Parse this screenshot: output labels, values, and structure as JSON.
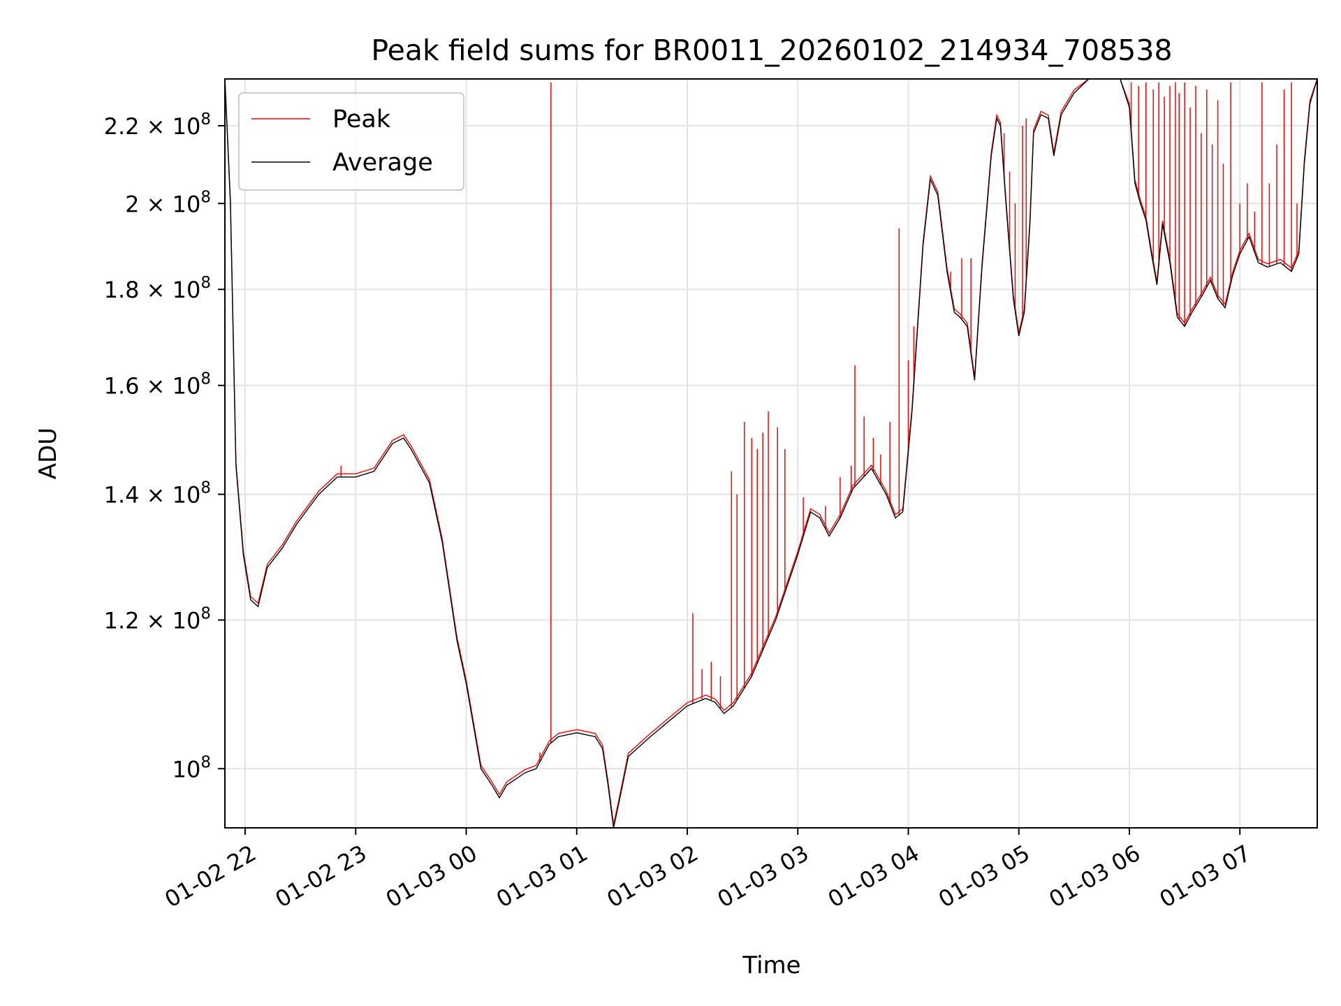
{
  "chart_data": {
    "type": "line",
    "title": "Peak field sums for BR0011_20260102_214934_708538",
    "xlabel": "Time",
    "ylabel": "ADU",
    "yscale": "log",
    "ylim": [
      93000000,
      233000000
    ],
    "xlim": [
      "2026-01-02 21:49",
      "2026-01-03 07:42"
    ],
    "grid": true,
    "legend_position": "top-left",
    "x_ticks": [
      {
        "time": "2026-01-02 22:00",
        "label": "01-02 22"
      },
      {
        "time": "2026-01-02 23:00",
        "label": "01-02 23"
      },
      {
        "time": "2026-01-03 00:00",
        "label": "01-03 00"
      },
      {
        "time": "2026-01-03 01:00",
        "label": "01-03 01"
      },
      {
        "time": "2026-01-03 02:00",
        "label": "01-03 02"
      },
      {
        "time": "2026-01-03 03:00",
        "label": "01-03 03"
      },
      {
        "time": "2026-01-03 04:00",
        "label": "01-03 04"
      },
      {
        "time": "2026-01-03 05:00",
        "label": "01-03 05"
      },
      {
        "time": "2026-01-03 06:00",
        "label": "01-03 06"
      },
      {
        "time": "2026-01-03 07:00",
        "label": "01-03 07"
      }
    ],
    "y_ticks": [
      {
        "value": 100000000,
        "mantissa": "",
        "exponent": "8"
      },
      {
        "value": 120000000,
        "mantissa": "1.2",
        "exponent": "8"
      },
      {
        "value": 140000000,
        "mantissa": "1.4",
        "exponent": "8"
      },
      {
        "value": 160000000,
        "mantissa": "1.6",
        "exponent": "8"
      },
      {
        "value": 180000000,
        "mantissa": "1.8",
        "exponent": "8"
      },
      {
        "value": 200000000,
        "mantissa": "2",
        "exponent": "8"
      },
      {
        "value": 220000000,
        "mantissa": "2.2",
        "exponent": "8"
      }
    ],
    "series": [
      {
        "name": "Average",
        "color": "#000000",
        "points": [
          [
            "2026-01-02 21:49",
            233000000
          ],
          [
            "2026-01-02 21:52",
            200000000
          ],
          [
            "2026-01-02 21:55",
            145000000
          ],
          [
            "2026-01-02 21:59",
            130000000
          ],
          [
            "2026-01-02 22:03",
            123000000
          ],
          [
            "2026-01-02 22:07",
            122000000
          ],
          [
            "2026-01-02 22:12",
            128000000
          ],
          [
            "2026-01-02 22:20",
            131000000
          ],
          [
            "2026-01-02 22:28",
            135000000
          ],
          [
            "2026-01-02 22:40",
            140000000
          ],
          [
            "2026-01-02 22:50",
            143000000
          ],
          [
            "2026-01-02 23:00",
            143000000
          ],
          [
            "2026-01-02 23:10",
            144000000
          ],
          [
            "2026-01-02 23:20",
            149000000
          ],
          [
            "2026-01-02 23:26",
            150000000
          ],
          [
            "2026-01-02 23:30",
            148000000
          ],
          [
            "2026-01-02 23:40",
            142000000
          ],
          [
            "2026-01-02 23:47",
            132000000
          ],
          [
            "2026-01-02 23:55",
            117000000
          ],
          [
            "2026-01-03 00:00",
            111000000
          ],
          [
            "2026-01-03 00:08",
            100000000
          ],
          [
            "2026-01-03 00:14",
            98000000
          ],
          [
            "2026-01-03 00:18",
            96500000
          ],
          [
            "2026-01-03 00:22",
            98000000
          ],
          [
            "2026-01-03 00:32",
            99500000
          ],
          [
            "2026-01-03 00:38",
            100000000
          ],
          [
            "2026-01-03 00:45",
            103000000
          ],
          [
            "2026-01-03 00:50",
            104000000
          ],
          [
            "2026-01-03 01:00",
            104500000
          ],
          [
            "2026-01-03 01:10",
            104000000
          ],
          [
            "2026-01-03 01:14",
            102500000
          ],
          [
            "2026-01-03 01:17",
            98000000
          ],
          [
            "2026-01-03 01:20",
            93000000
          ],
          [
            "2026-01-03 01:23",
            96000000
          ],
          [
            "2026-01-03 01:28",
            101500000
          ],
          [
            "2026-01-03 01:40",
            104000000
          ],
          [
            "2026-01-03 01:50",
            106000000
          ],
          [
            "2026-01-03 02:00",
            108000000
          ],
          [
            "2026-01-03 02:10",
            109000000
          ],
          [
            "2026-01-03 02:15",
            108500000
          ],
          [
            "2026-01-03 02:20",
            107000000
          ],
          [
            "2026-01-03 02:25",
            108000000
          ],
          [
            "2026-01-03 02:35",
            112000000
          ],
          [
            "2026-01-03 02:48",
            120000000
          ],
          [
            "2026-01-03 03:00",
            130000000
          ],
          [
            "2026-01-03 03:07",
            137000000
          ],
          [
            "2026-01-03 03:12",
            136000000
          ],
          [
            "2026-01-03 03:17",
            133000000
          ],
          [
            "2026-01-03 03:23",
            136000000
          ],
          [
            "2026-01-03 03:30",
            141000000
          ],
          [
            "2026-01-03 03:40",
            144500000
          ],
          [
            "2026-01-03 03:48",
            140000000
          ],
          [
            "2026-01-03 03:53",
            136000000
          ],
          [
            "2026-01-03 03:57",
            137000000
          ],
          [
            "2026-01-03 04:02",
            155000000
          ],
          [
            "2026-01-03 04:08",
            190000000
          ],
          [
            "2026-01-03 04:12",
            206000000
          ],
          [
            "2026-01-03 04:16",
            202000000
          ],
          [
            "2026-01-03 04:21",
            184000000
          ],
          [
            "2026-01-03 04:25",
            175000000
          ],
          [
            "2026-01-03 04:28",
            174000000
          ],
          [
            "2026-01-03 04:32",
            172000000
          ],
          [
            "2026-01-03 04:36",
            161000000
          ],
          [
            "2026-01-03 04:40",
            185000000
          ],
          [
            "2026-01-03 04:45",
            212000000
          ],
          [
            "2026-01-03 04:48",
            222000000
          ],
          [
            "2026-01-03 04:50",
            220000000
          ],
          [
            "2026-01-03 04:53",
            200000000
          ],
          [
            "2026-01-03 04:57",
            178000000
          ],
          [
            "2026-01-03 05:00",
            170000000
          ],
          [
            "2026-01-03 05:03",
            175000000
          ],
          [
            "2026-01-03 05:06",
            195000000
          ],
          [
            "2026-01-03 05:08",
            218000000
          ],
          [
            "2026-01-03 05:12",
            223000000
          ],
          [
            "2026-01-03 05:16",
            222000000
          ],
          [
            "2026-01-03 05:19",
            212000000
          ],
          [
            "2026-01-03 05:23",
            223000000
          ],
          [
            "2026-01-03 05:30",
            229000000
          ],
          [
            "2026-01-03 05:38",
            233000000
          ],
          [
            "2026-01-03 05:55",
            233000000
          ],
          [
            "2026-01-03 06:00",
            225000000
          ],
          [
            "2026-01-03 06:03",
            205000000
          ],
          [
            "2026-01-03 06:06",
            200000000
          ],
          [
            "2026-01-03 06:09",
            196000000
          ],
          [
            "2026-01-03 06:12",
            188000000
          ],
          [
            "2026-01-03 06:15",
            181000000
          ],
          [
            "2026-01-03 06:18",
            195000000
          ],
          [
            "2026-01-03 06:22",
            186000000
          ],
          [
            "2026-01-03 06:26",
            174000000
          ],
          [
            "2026-01-03 06:30",
            172000000
          ],
          [
            "2026-01-03 06:34",
            175000000
          ],
          [
            "2026-01-03 06:40",
            179000000
          ],
          [
            "2026-01-03 06:44",
            182000000
          ],
          [
            "2026-01-03 06:48",
            178000000
          ],
          [
            "2026-01-03 06:52",
            176000000
          ],
          [
            "2026-01-03 06:56",
            183000000
          ],
          [
            "2026-01-03 07:00",
            188000000
          ],
          [
            "2026-01-03 07:05",
            192000000
          ],
          [
            "2026-01-03 07:10",
            186000000
          ],
          [
            "2026-01-03 07:15",
            185000000
          ],
          [
            "2026-01-03 07:22",
            186000000
          ],
          [
            "2026-01-03 07:28",
            184000000
          ],
          [
            "2026-01-03 07:32",
            188000000
          ],
          [
            "2026-01-03 07:35",
            210000000
          ],
          [
            "2026-01-03 07:38",
            226000000
          ],
          [
            "2026-01-03 07:42",
            233000000
          ]
        ]
      },
      {
        "name": "Peak",
        "color": "#ff0000",
        "follows": "Average",
        "spikes": [
          [
            "2026-01-02 22:52",
            145000000
          ],
          [
            "2026-01-03 00:40",
            102000000
          ],
          [
            "2026-01-03 00:46",
            232000000
          ],
          [
            "2026-01-03 01:47",
            105500000
          ],
          [
            "2026-01-03 02:03",
            121000000
          ],
          [
            "2026-01-03 02:08",
            113000000
          ],
          [
            "2026-01-03 02:13",
            114000000
          ],
          [
            "2026-01-03 02:18",
            112000000
          ],
          [
            "2026-01-03 02:24",
            144000000
          ],
          [
            "2026-01-03 02:27",
            140000000
          ],
          [
            "2026-01-03 02:31",
            153000000
          ],
          [
            "2026-01-03 02:35",
            150000000
          ],
          [
            "2026-01-03 02:38",
            148000000
          ],
          [
            "2026-01-03 02:41",
            151000000
          ],
          [
            "2026-01-03 02:44",
            155000000
          ],
          [
            "2026-01-03 02:49",
            152000000
          ],
          [
            "2026-01-03 02:53",
            148000000
          ],
          [
            "2026-01-03 03:03",
            139500000
          ],
          [
            "2026-01-03 03:15",
            138000000
          ],
          [
            "2026-01-03 03:23",
            143000000
          ],
          [
            "2026-01-03 03:29",
            145000000
          ],
          [
            "2026-01-03 03:31",
            164000000
          ],
          [
            "2026-01-03 03:36",
            154000000
          ],
          [
            "2026-01-03 03:41",
            150000000
          ],
          [
            "2026-01-03 03:45",
            147000000
          ],
          [
            "2026-01-03 03:50",
            153000000
          ],
          [
            "2026-01-03 03:55",
            194000000
          ],
          [
            "2026-01-03 04:00",
            165000000
          ],
          [
            "2026-01-03 04:03",
            172000000
          ],
          [
            "2026-01-03 04:23",
            184000000
          ],
          [
            "2026-01-03 04:29",
            187000000
          ],
          [
            "2026-01-03 04:34",
            187000000
          ],
          [
            "2026-01-03 04:52",
            218000000
          ],
          [
            "2026-01-03 04:55",
            208000000
          ],
          [
            "2026-01-03 04:58",
            200000000
          ],
          [
            "2026-01-03 05:02",
            220000000
          ],
          [
            "2026-01-03 05:04",
            222000000
          ],
          [
            "2026-01-03 06:01",
            232000000
          ],
          [
            "2026-01-03 06:05",
            231000000
          ],
          [
            "2026-01-03 06:09",
            232000000
          ],
          [
            "2026-01-03 06:13",
            230000000
          ],
          [
            "2026-01-03 06:16",
            232000000
          ],
          [
            "2026-01-03 06:19",
            228000000
          ],
          [
            "2026-01-03 06:22",
            231000000
          ],
          [
            "2026-01-03 06:25",
            232000000
          ],
          [
            "2026-01-03 06:27",
            229000000
          ],
          [
            "2026-01-03 06:30",
            232000000
          ],
          [
            "2026-01-03 06:33",
            225000000
          ],
          [
            "2026-01-03 06:36",
            231000000
          ],
          [
            "2026-01-03 06:39",
            218000000
          ],
          [
            "2026-01-03 06:42",
            230000000
          ],
          [
            "2026-01-03 06:45",
            215000000
          ],
          [
            "2026-01-03 06:48",
            227000000
          ],
          [
            "2026-01-03 06:51",
            210000000
          ],
          [
            "2026-01-03 06:55",
            232000000
          ],
          [
            "2026-01-03 07:00",
            200000000
          ],
          [
            "2026-01-03 07:04",
            205000000
          ],
          [
            "2026-01-03 07:08",
            198000000
          ],
          [
            "2026-01-03 07:12",
            232000000
          ],
          [
            "2026-01-03 07:16",
            205000000
          ],
          [
            "2026-01-03 07:20",
            215000000
          ],
          [
            "2026-01-03 07:24",
            230000000
          ],
          [
            "2026-01-03 07:28",
            232000000
          ],
          [
            "2026-01-03 07:31",
            200000000
          ]
        ]
      }
    ]
  }
}
